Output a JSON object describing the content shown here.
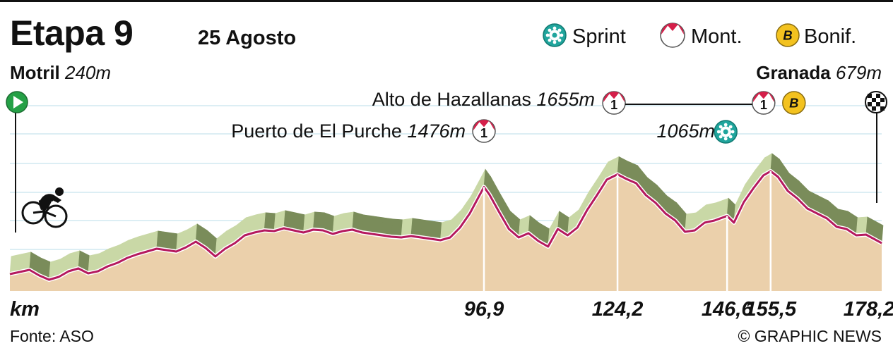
{
  "header": {
    "title": "Etapa 9",
    "date": "25 Agosto"
  },
  "legend": {
    "sprint": "Sprint",
    "mountain": "Mont.",
    "bonus": "Bonif.",
    "bonus_letter": "B",
    "mountain_category": "1"
  },
  "start": {
    "name": "Motril",
    "altitude": "240m"
  },
  "finish": {
    "name": "Granada",
    "altitude": "679m"
  },
  "climbs": [
    {
      "name": "Puerto de El Purche",
      "altitude": "1476m",
      "km": 96.9,
      "category": "1"
    },
    {
      "name": "Alto de Hazallanas",
      "altitude": "1655m",
      "km": 124.2,
      "category": "1"
    },
    {
      "name": "",
      "altitude": "",
      "km": 155.5,
      "category": "1"
    }
  ],
  "sprint": {
    "altitude": "1065m",
    "km": 146.6
  },
  "footer": {
    "source": "Fonte: ASO",
    "credit": "© GRAPHIC NEWS"
  },
  "colors": {
    "profile_fill": "#ebd0ab",
    "profile_line": "#b5195e",
    "wall_light": "#c9d8a6",
    "wall_dark": "#7a8c5a",
    "grid": "#c8e4ee",
    "sprint": "#20a59d",
    "mountain": "#d51f4a",
    "bonus": "#f3c21f"
  },
  "chart_data": {
    "type": "area",
    "title": "Etapa 9",
    "xlabel": "km",
    "ylabel": "",
    "x_ticks": [
      "96,9",
      "124,2",
      "146,6",
      "155,5",
      "178,2"
    ],
    "xlim": [
      0,
      178.2
    ],
    "ylim": [
      0,
      1900
    ],
    "grid": true,
    "series": [
      {
        "x": [
          0,
          2,
          4,
          6,
          8,
          10,
          12,
          14,
          16,
          18,
          20,
          22,
          24,
          26,
          28,
          30,
          32,
          34,
          36,
          38,
          40,
          42,
          44,
          46,
          48,
          50,
          52,
          54,
          56,
          58,
          60,
          62,
          64,
          66,
          68,
          70,
          72,
          74,
          76,
          78,
          80,
          82,
          84,
          86,
          88,
          90,
          92,
          94,
          96.9,
          98,
          100,
          102,
          104,
          106,
          108,
          110,
          112,
          114,
          116,
          118,
          120,
          122,
          124.2,
          126,
          128,
          130,
          132,
          134,
          136,
          138,
          140,
          142,
          144,
          146.6,
          148,
          150,
          152,
          154,
          155.5,
          157,
          159,
          161,
          163,
          165,
          167,
          169,
          171,
          173,
          175,
          178.2
        ],
        "y": [
          240,
          270,
          300,
          220,
          160,
          200,
          280,
          320,
          250,
          280,
          350,
          400,
          470,
          520,
          560,
          600,
          580,
          560,
          620,
          700,
          610,
          490,
          600,
          680,
          790,
          830,
          860,
          850,
          890,
          860,
          830,
          870,
          860,
          810,
          850,
          870,
          830,
          810,
          790,
          770,
          760,
          780,
          760,
          740,
          720,
          760,
          900,
          1100,
          1476,
          1370,
          1120,
          880,
          760,
          820,
          710,
          630,
          880,
          790,
          900,
          1150,
          1360,
          1580,
          1655,
          1590,
          1530,
          1360,
          1250,
          1100,
          1000,
          840,
          860,
          970,
          1000,
          1065,
          970,
          1260,
          1460,
          1640,
          1700,
          1620,
          1420,
          1310,
          1170,
          1100,
          1030,
          910,
          880,
          790,
          800,
          679
        ]
      }
    ]
  }
}
